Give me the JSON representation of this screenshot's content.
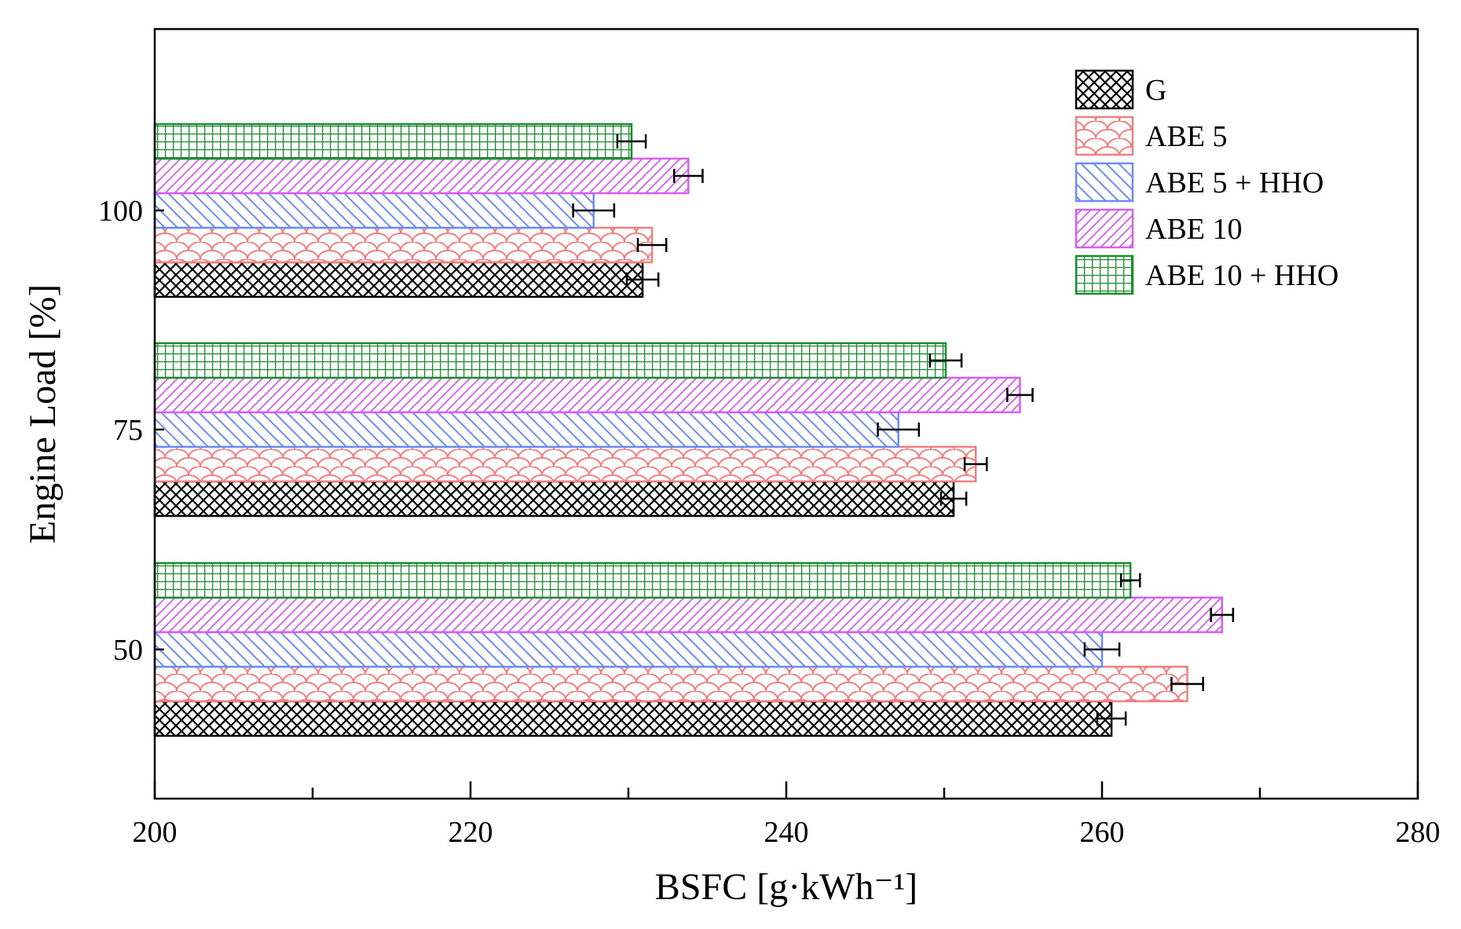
{
  "chart_data": {
    "type": "bar",
    "orientation": "horizontal",
    "categories": [
      "50",
      "75",
      "100"
    ],
    "series": [
      {
        "name": "G",
        "values": [
          260.6,
          250.6,
          230.9
        ],
        "errors": [
          0.9,
          0.8,
          1.0
        ],
        "color": "#000000",
        "pattern": "crosshatch"
      },
      {
        "name": "ABE 5",
        "values": [
          265.4,
          252.0,
          231.5
        ],
        "errors": [
          1.0,
          0.7,
          0.9
        ],
        "color": "#f08080",
        "pattern": "scales"
      },
      {
        "name": "ABE 5 + HHO",
        "values": [
          260.0,
          247.1,
          227.8
        ],
        "errors": [
          1.1,
          1.3,
          1.3
        ],
        "color": "#6a8df5",
        "pattern": "backslash"
      },
      {
        "name": "ABE 10",
        "values": [
          267.6,
          254.8,
          233.8
        ],
        "errors": [
          0.7,
          0.8,
          0.9
        ],
        "color": "#d65cf2",
        "pattern": "forwardslash"
      },
      {
        "name": "ABE 10 + HHO",
        "values": [
          261.8,
          250.1,
          230.2
        ],
        "errors": [
          0.6,
          1.0,
          0.9
        ],
        "color": "#1a8c2e",
        "pattern": "grid"
      }
    ],
    "xlabel": "BSFC [g·kWh⁻¹]",
    "ylabel": "Engine Load [%]",
    "xlim": [
      200,
      280
    ],
    "xticks": [
      "200",
      "220",
      "240",
      "260",
      "280"
    ],
    "grid": false,
    "legend_position": "top-right"
  }
}
